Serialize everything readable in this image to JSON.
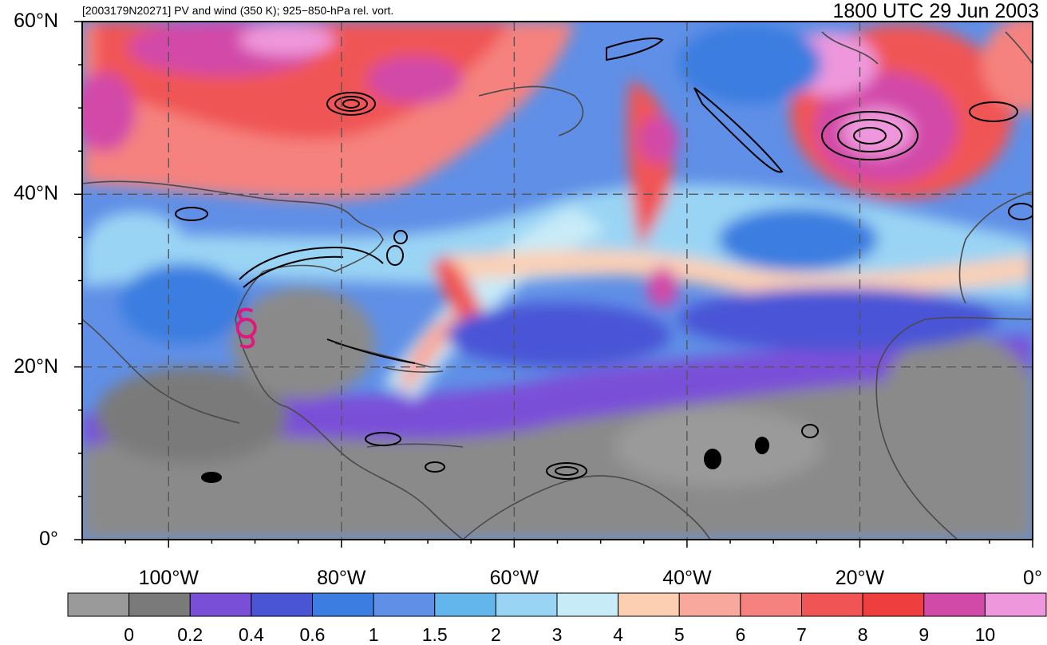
{
  "header": {
    "left_title": "[2003179N20271] PV and wind (350 K); 925−850-hPa rel. vort.",
    "right_title": "1800 UTC 29 Jun 2003"
  },
  "axes": {
    "lat_labels": [
      "60°N",
      "40°N",
      "20°N",
      "0°"
    ],
    "lat_values": [
      60,
      40,
      20,
      0
    ],
    "lon_labels": [
      "100°W",
      "80°W",
      "60°W",
      "40°W",
      "20°W",
      "0°"
    ],
    "lon_values": [
      -100,
      -80,
      -60,
      -40,
      -20,
      0
    ],
    "lon_range": [
      -110,
      0
    ],
    "lat_range": [
      0,
      60
    ],
    "grid": "dashed"
  },
  "colorbar": {
    "levels": [
      "0",
      "0.2",
      "0.4",
      "0.6",
      "1",
      "1.5",
      "2",
      "3",
      "4",
      "5",
      "6",
      "7",
      "8",
      "9",
      "10"
    ],
    "colors": [
      "#9a9a9a",
      "#7a7a7a",
      "#7a4fd8",
      "#4a55d6",
      "#3b7de0",
      "#5f8fe6",
      "#62b6ec",
      "#9ad4f4",
      "#c8ebf8",
      "#fccfb2",
      "#f8a89c",
      "#f5827e",
      "#f05454",
      "#ef3e3e",
      "#d24aa8",
      "#ef97dc"
    ]
  },
  "storm": {
    "symbol_color": "#e0187c",
    "lon": -91,
    "lat": 24.5
  }
}
